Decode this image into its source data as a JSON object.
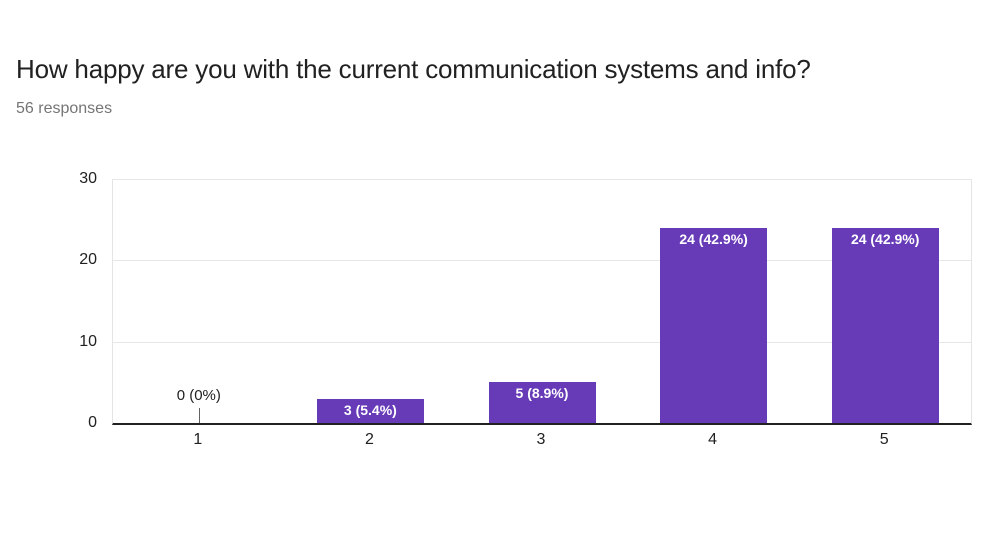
{
  "header": {
    "title": "How happy are you with the current communication systems and info?",
    "subtitle": "56 responses"
  },
  "chart_data": {
    "type": "bar",
    "title": "How happy are you with the current communication systems and info?",
    "subtitle": "56 responses",
    "categories": [
      "1",
      "2",
      "3",
      "4",
      "5"
    ],
    "values": [
      0,
      3,
      5,
      24,
      24
    ],
    "data_labels": [
      "0 (0%)",
      "3 (5.4%)",
      "5 (8.9%)",
      "24 (42.9%)",
      "24 (42.9%)"
    ],
    "xlabel": "",
    "ylabel": "",
    "ylim": [
      0,
      30
    ],
    "yticks": [
      0,
      10,
      20,
      30
    ],
    "grid": true,
    "legend": false,
    "colors": {
      "bar_fill": "#673ab7",
      "bar_label": "#ffffff",
      "zero_label": "#212121",
      "gridline": "#e7e7e7",
      "axis_line": "#212121",
      "subtitle_text": "#757575",
      "title_text": "#212121"
    }
  }
}
